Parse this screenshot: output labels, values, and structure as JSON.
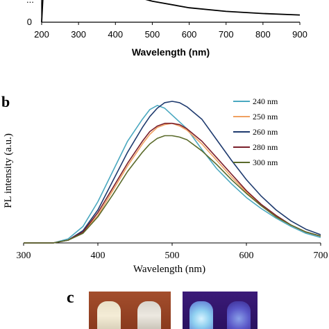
{
  "panel_a": {
    "xlabel": "Wavelength (nm)",
    "x_ticks": [
      "200",
      "300",
      "400",
      "500",
      "600",
      "700",
      "800",
      "900"
    ],
    "y_ticks": [
      "0"
    ],
    "y_top_fragment": "..."
  },
  "panel_b": {
    "label": "b",
    "ylabel": "PL intensity (a.u.)",
    "xlabel": "Wavelength (nm)",
    "x_ticks": [
      "300",
      "400",
      "500",
      "600",
      "700"
    ]
  },
  "panel_c": {
    "label": "c"
  },
  "colors": {
    "s240": "#4aa8c0",
    "s250": "#f0a060",
    "s260": "#1e3a6e",
    "s280": "#7a1e2a",
    "s300": "#5a6a2a"
  },
  "chart_data": [
    {
      "type": "line",
      "title": "",
      "xlabel": "Wavelength (nm)",
      "ylabel": "",
      "xlim": [
        200,
        900
      ],
      "ylim": [
        0,
        1
      ],
      "series": [
        {
          "x": [
            200,
            205,
            210,
            230,
            260,
            300,
            340,
            400,
            450,
            500,
            600,
            700,
            800,
            900
          ],
          "values": [
            0.0,
            1.0,
            1.0,
            1.0,
            1.0,
            1.0,
            1.0,
            0.95,
            0.72,
            0.58,
            0.4,
            0.3,
            0.24,
            0.2
          ]
        }
      ]
    },
    {
      "type": "line",
      "title": "",
      "xlabel": "Wavelength (nm)",
      "ylabel": "PL intensity (a.u.)",
      "xlim": [
        300,
        700
      ],
      "ylim": [
        0,
        1.05
      ],
      "x": [
        300,
        340,
        360,
        380,
        400,
        420,
        440,
        460,
        470,
        480,
        490,
        500,
        510,
        520,
        540,
        560,
        580,
        600,
        620,
        640,
        660,
        680,
        700
      ],
      "series": [
        {
          "name": "240 nm",
          "values": [
            0.0,
            0.0,
            0.03,
            0.12,
            0.3,
            0.52,
            0.74,
            0.9,
            0.97,
            1.0,
            0.98,
            0.93,
            0.88,
            0.83,
            0.68,
            0.54,
            0.43,
            0.33,
            0.25,
            0.18,
            0.12,
            0.07,
            0.04
          ]
        },
        {
          "name": "250 nm",
          "values": [
            0.0,
            0.0,
            0.02,
            0.08,
            0.2,
            0.38,
            0.56,
            0.72,
            0.79,
            0.84,
            0.86,
            0.87,
            0.85,
            0.82,
            0.72,
            0.6,
            0.48,
            0.37,
            0.27,
            0.19,
            0.13,
            0.08,
            0.05
          ]
        },
        {
          "name": "260 nm",
          "values": [
            0.0,
            0.0,
            0.02,
            0.09,
            0.24,
            0.45,
            0.66,
            0.84,
            0.92,
            0.98,
            1.02,
            1.03,
            1.02,
            0.99,
            0.9,
            0.75,
            0.6,
            0.46,
            0.34,
            0.24,
            0.16,
            0.1,
            0.06
          ]
        },
        {
          "name": "280 nm",
          "values": [
            0.0,
            0.0,
            0.02,
            0.08,
            0.22,
            0.4,
            0.58,
            0.74,
            0.81,
            0.85,
            0.87,
            0.87,
            0.86,
            0.83,
            0.74,
            0.62,
            0.5,
            0.38,
            0.28,
            0.2,
            0.13,
            0.08,
            0.05
          ]
        },
        {
          "name": "300 nm",
          "values": [
            0.0,
            0.0,
            0.02,
            0.07,
            0.19,
            0.35,
            0.52,
            0.66,
            0.72,
            0.76,
            0.78,
            0.78,
            0.77,
            0.75,
            0.67,
            0.57,
            0.46,
            0.36,
            0.27,
            0.19,
            0.13,
            0.08,
            0.05
          ]
        }
      ],
      "legend_position": "top-right"
    }
  ]
}
